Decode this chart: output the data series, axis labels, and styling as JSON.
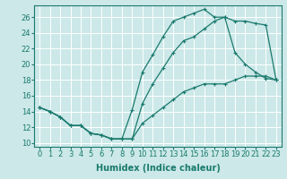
{
  "xlabel": "Humidex (Indice chaleur)",
  "bg_color": "#cce8e8",
  "grid_color": "#ffffff",
  "line_color": "#1a7a6e",
  "xlim": [
    -0.5,
    23.5
  ],
  "ylim": [
    9.5,
    27.5
  ],
  "xticks": [
    0,
    1,
    2,
    3,
    4,
    5,
    6,
    7,
    8,
    9,
    10,
    11,
    12,
    13,
    14,
    15,
    16,
    17,
    18,
    19,
    20,
    21,
    22,
    23
  ],
  "yticks": [
    10,
    12,
    14,
    16,
    18,
    20,
    22,
    24,
    26
  ],
  "line1_x": [
    0,
    1,
    2,
    3,
    4,
    5,
    6,
    7,
    8,
    9,
    10,
    11,
    12,
    13,
    14,
    15,
    16,
    17,
    18,
    19,
    20,
    21,
    22,
    23
  ],
  "line1_y": [
    14.5,
    14.0,
    13.3,
    12.2,
    12.2,
    11.2,
    11.0,
    10.5,
    10.5,
    14.2,
    19.0,
    21.2,
    23.5,
    25.5,
    26.0,
    26.5,
    27.0,
    26.0,
    26.0,
    21.5,
    20.0,
    19.0,
    18.2,
    18.0
  ],
  "line2_x": [
    0,
    1,
    2,
    3,
    4,
    5,
    6,
    7,
    8,
    9,
    10,
    11,
    12,
    13,
    14,
    15,
    16,
    17,
    18,
    19,
    20,
    21,
    22,
    23
  ],
  "line2_y": [
    14.5,
    14.0,
    13.3,
    12.2,
    12.2,
    11.2,
    11.0,
    10.5,
    10.5,
    10.5,
    15.0,
    17.5,
    19.5,
    21.5,
    23.0,
    23.5,
    24.5,
    25.5,
    26.0,
    25.5,
    25.5,
    25.2,
    25.0,
    18.0
  ],
  "line3_x": [
    0,
    1,
    2,
    3,
    4,
    5,
    6,
    7,
    8,
    9,
    10,
    11,
    12,
    13,
    14,
    15,
    16,
    17,
    18,
    19,
    20,
    21,
    22,
    23
  ],
  "line3_y": [
    14.5,
    14.0,
    13.3,
    12.2,
    12.2,
    11.2,
    11.0,
    10.5,
    10.5,
    10.5,
    12.5,
    13.5,
    14.5,
    15.5,
    16.5,
    17.0,
    17.5,
    17.5,
    17.5,
    18.0,
    18.5,
    18.5,
    18.5,
    18.0
  ],
  "marker": "+",
  "markersize": 3.5,
  "linewidth": 0.9,
  "xlabel_fontsize": 7,
  "tick_fontsize": 6
}
